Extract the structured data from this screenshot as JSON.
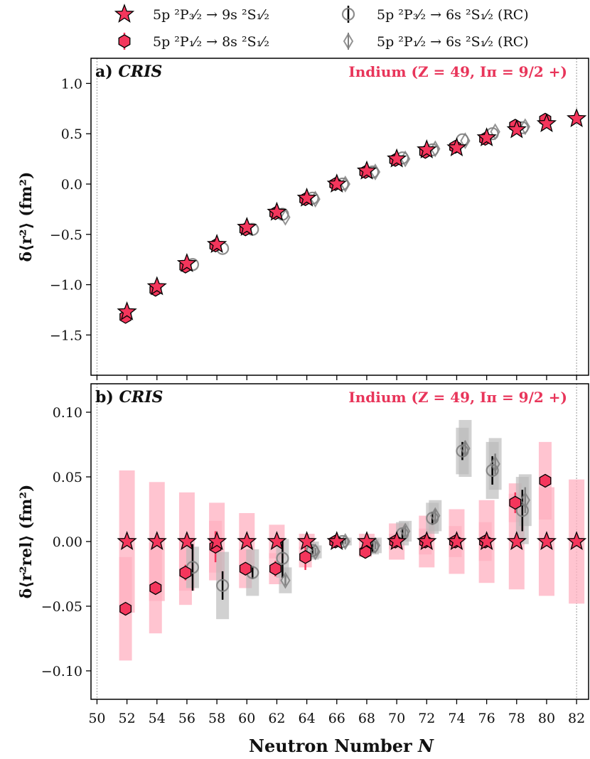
{
  "legend": [
    {
      "symbol": "star",
      "label": "5p ²P₃⁄₂ → 9s ²S₁⁄₂"
    },
    {
      "symbol": "hex",
      "label": "5p ²P₁⁄₂ → 8s ²S₁⁄₂"
    },
    {
      "symbol": "circle",
      "label": "5p ²P₃⁄₂ → 6s ²S₁⁄₂ (RC)"
    },
    {
      "symbol": "diamond",
      "label": "5p ²P₁⁄₂ → 6s ²S₁⁄₂ (RC)"
    }
  ],
  "colors": {
    "pink": "#f4365c",
    "pink_band": "#ffb0c0",
    "gray_band": "#b8b8b8",
    "gray_marker": "#808080"
  },
  "xlabel_main": "Neutron Number ",
  "xlabel_var": "N",
  "chart_data": [
    {
      "type": "scatter",
      "panel_tag": "a)",
      "panel_title": "CRIS",
      "annotation": "Indium (Z = 49, Iπ = 9/2 +)",
      "ylabel": "δ⟨r²⟩ (fm²)",
      "ylim": [
        -1.9,
        1.25
      ],
      "yticks": [
        1.0,
        0.5,
        0.0,
        -0.5,
        -1.0,
        -1.5
      ],
      "ytick_labels": [
        "1.0",
        "0.5",
        "0.0",
        "−0.5",
        "−1.0",
        "−1.5"
      ],
      "xlim": [
        49.6,
        82.8
      ],
      "xticks": [
        50,
        52,
        54,
        56,
        58,
        60,
        62,
        64,
        66,
        68,
        70,
        72,
        74,
        76,
        78,
        80,
        82
      ],
      "vlines": [
        50,
        82
      ],
      "series": [
        {
          "name": "5p 2P3/2 → 9s 2S1/2",
          "marker": "star",
          "x": [
            52,
            54,
            56,
            58,
            60,
            62,
            64,
            66,
            68,
            70,
            72,
            74,
            76,
            78,
            80,
            82
          ],
          "y": [
            -1.27,
            -1.02,
            -0.79,
            -0.6,
            -0.43,
            -0.28,
            -0.14,
            0.0,
            0.13,
            0.25,
            0.34,
            0.36,
            0.46,
            0.54,
            0.6,
            0.65
          ]
        },
        {
          "name": "5p 2P1/2 → 8s 2S1/2",
          "marker": "hex",
          "x": [
            52,
            54,
            56,
            58,
            60,
            62,
            64,
            66,
            68,
            70,
            72,
            74,
            76,
            78,
            80
          ],
          "y": [
            -1.32,
            -1.05,
            -0.82,
            -0.61,
            -0.45,
            -0.29,
            -0.15,
            0.0,
            0.12,
            0.24,
            0.32,
            0.37,
            0.45,
            0.58,
            0.64
          ]
        },
        {
          "name": "5p 2P3/2 → 6s 2S1/2 (RC)",
          "marker": "circle",
          "x": [
            56,
            58,
            60,
            62,
            64,
            66,
            68,
            70,
            72,
            74,
            76,
            78
          ],
          "y": [
            -0.8,
            -0.64,
            -0.45,
            -0.3,
            -0.14,
            0.0,
            0.12,
            0.26,
            0.34,
            0.44,
            0.5,
            0.56
          ]
        },
        {
          "name": "5p 2P1/2 → 6s 2S1/2 (RC)",
          "marker": "diamond",
          "x": [
            62,
            64,
            66,
            68,
            70,
            72,
            74,
            76,
            78
          ],
          "y": [
            -0.33,
            -0.15,
            0.0,
            0.12,
            0.25,
            0.35,
            0.43,
            0.52,
            0.57
          ]
        }
      ]
    },
    {
      "type": "scatter",
      "panel_tag": "b)",
      "panel_title": "CRIS",
      "annotation": "Indium (Z = 49, Iπ = 9/2 +)",
      "ylabel": "δ⟨r²rel⟩ (fm²)",
      "ylim": [
        -0.122,
        0.122
      ],
      "yticks": [
        0.1,
        0.05,
        0.0,
        -0.05,
        -0.1
      ],
      "ytick_labels": [
        "0.10",
        "0.05",
        "0.00",
        "−0.05",
        "−0.10"
      ],
      "xlim": [
        49.6,
        82.8
      ],
      "xticks": [
        50,
        52,
        54,
        56,
        58,
        60,
        62,
        64,
        66,
        68,
        70,
        72,
        74,
        76,
        78,
        80,
        82
      ],
      "vlines": [
        50,
        82
      ],
      "series": [
        {
          "name": "5p 2P3/2 → 9s 2S1/2",
          "marker": "star",
          "x": [
            52,
            54,
            56,
            58,
            60,
            62,
            64,
            66,
            68,
            70,
            72,
            74,
            76,
            78,
            80,
            82
          ],
          "y": [
            0,
            0,
            0,
            0,
            0,
            0,
            0,
            0,
            0,
            0,
            0,
            0,
            0,
            0,
            0,
            0
          ],
          "band_half": [
            0.055,
            0.046,
            0.038,
            0.03,
            0.022,
            0.013,
            0.006,
            0.003,
            0.006,
            0.014,
            0.02,
            0.025,
            0.032,
            0.037,
            0.042,
            0.048
          ]
        },
        {
          "name": "5p 2P1/2 → 8s 2S1/2",
          "marker": "hex",
          "x": [
            52,
            54,
            56,
            58,
            60,
            62,
            64,
            66,
            68,
            70,
            72,
            74,
            76,
            78,
            80
          ],
          "y": [
            -0.052,
            -0.036,
            -0.024,
            -0.004,
            -0.021,
            -0.021,
            -0.012,
            0.0,
            -0.008,
            0.0,
            0.0,
            0.0,
            0.0,
            0.03,
            0.047
          ],
          "err": [
            0.005,
            0.004,
            0.006,
            0.012,
            0.005,
            0.006,
            0.01,
            0.002,
            0.004,
            0.003,
            0.004,
            0.004,
            0.005,
            0.008,
            0.005
          ],
          "band_half": [
            0.04,
            0.035,
            0.025,
            0.02,
            0.015,
            0.012,
            0.008,
            0.002,
            0.004,
            0.006,
            0.01,
            0.012,
            0.015,
            0.015,
            0.03
          ]
        },
        {
          "name": "5p 2P3/2 → 6s 2S1/2 (RC)",
          "marker": "circle",
          "x": [
            56,
            58,
            60,
            62,
            64,
            66,
            68,
            70,
            72,
            74,
            76,
            78
          ],
          "y": [
            -0.02,
            -0.034,
            -0.024,
            -0.013,
            -0.007,
            0.0,
            -0.004,
            0.006,
            0.018,
            0.07,
            0.055,
            0.024
          ],
          "err": [
            0.018,
            0.011,
            0.005,
            0.015,
            0.003,
            0.002,
            0.004,
            0.004,
            0.005,
            0.007,
            0.011,
            0.016
          ],
          "band_half": [
            0.016,
            0.026,
            0.018,
            0.015,
            0.007,
            0.003,
            0.006,
            0.009,
            0.012,
            0.018,
            0.022,
            0.026
          ]
        },
        {
          "name": "5p 2P1/2 → 6s 2S1/2 (RC)",
          "marker": "diamond",
          "x": [
            62,
            64,
            66,
            68,
            70,
            72,
            74,
            76,
            78
          ],
          "y": [
            -0.03,
            -0.008,
            0.0,
            -0.003,
            0.008,
            0.02,
            0.072,
            0.06,
            0.032
          ],
          "err": [
            0.004,
            0.003,
            0.002,
            0.003,
            0.004,
            0.005,
            0.006,
            0.008,
            0.01
          ],
          "band_half": [
            0.01,
            0.005,
            0.003,
            0.006,
            0.008,
            0.012,
            0.022,
            0.02,
            0.02
          ]
        }
      ]
    }
  ]
}
